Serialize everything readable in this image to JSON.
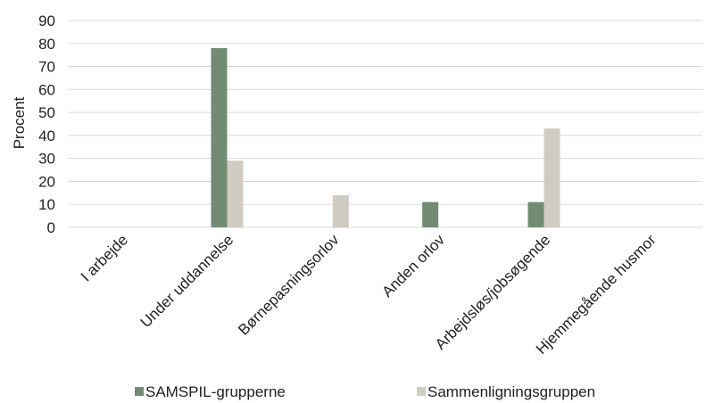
{
  "chart_data": {
    "type": "bar",
    "ylabel": "Procent",
    "xlabel": "",
    "ylim": [
      0,
      90
    ],
    "yticks": [
      "0",
      "10",
      "20",
      "30",
      "40",
      "50",
      "60",
      "70",
      "80",
      "90"
    ],
    "grid": true,
    "legend_position": "bottom",
    "categories": [
      "I arbejde",
      "Under uddannelse",
      "Børnepasningsorlov",
      "Anden orlov",
      "Arbejdsløs/jobsøgende",
      "Hjemmegående husmor"
    ],
    "series": [
      {
        "name": "SAMSPIL-grupperne",
        "color": "#718c72",
        "values": [
          0,
          78,
          0,
          11,
          11,
          0
        ]
      },
      {
        "name": "Sammenligningsgruppen",
        "color": "#d0ccc1",
        "values": [
          0,
          29,
          14,
          0,
          43,
          0
        ]
      }
    ]
  }
}
